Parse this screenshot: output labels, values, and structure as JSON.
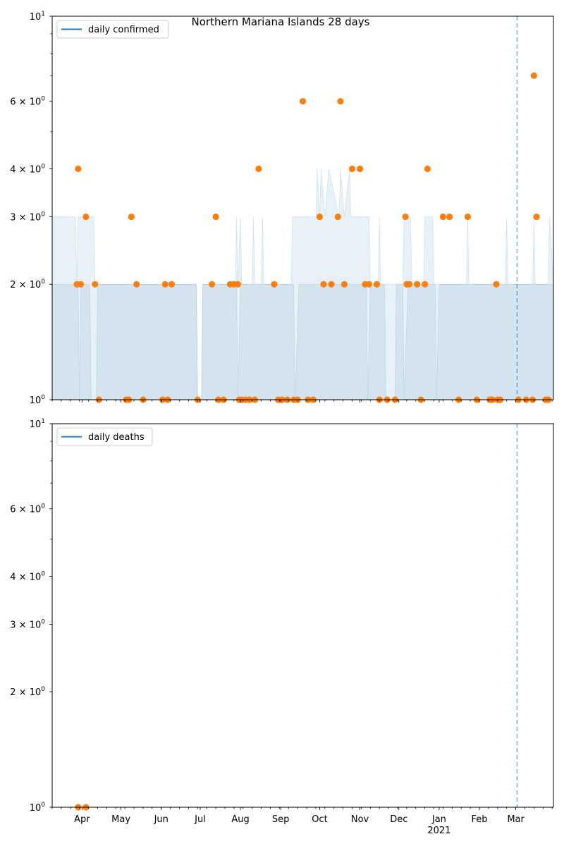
{
  "figure_title": "Northern Mariana Islands 28 days",
  "colors": {
    "line": "#1f77b4",
    "points": "#ff7f0e",
    "band": "#1f77b4",
    "vline": "#1f77b4"
  },
  "chart_data": [
    {
      "type": "scatter",
      "panel": "top",
      "title": "Northern Mariana Islands 28 days",
      "legend": {
        "label": "daily confirmed",
        "placement": "top-left"
      },
      "y_scale": "log",
      "ylim": [
        1,
        10
      ],
      "y_ticks": [
        {
          "value": 1,
          "label": "10",
          "exp": "0"
        },
        {
          "value": 2,
          "label": "2 × 10",
          "exp": "0"
        },
        {
          "value": 3,
          "label": "3 × 10",
          "exp": "0"
        },
        {
          "value": 4,
          "label": "4 × 10",
          "exp": "0"
        },
        {
          "value": 6,
          "label": "6 × 10",
          "exp": "0"
        },
        {
          "value": 10,
          "label": "10",
          "exp": "1"
        }
      ],
      "xlim": [
        "2020-03-09",
        "2021-03-30"
      ],
      "vline_date": "2021-03-02",
      "series": [
        {
          "name": "daily confirmed",
          "points": [
            [
              "2020-03-28",
              2
            ],
            [
              "2020-03-29",
              4
            ],
            [
              "2020-03-31",
              2
            ],
            [
              "2020-04-04",
              3
            ],
            [
              "2020-04-11",
              2
            ],
            [
              "2020-04-14",
              1
            ],
            [
              "2020-05-05",
              1
            ],
            [
              "2020-05-07",
              1
            ],
            [
              "2020-05-09",
              3
            ],
            [
              "2020-05-13",
              2
            ],
            [
              "2020-05-18",
              1
            ],
            [
              "2020-06-02",
              1
            ],
            [
              "2020-06-04",
              2
            ],
            [
              "2020-06-06",
              1
            ],
            [
              "2020-06-09",
              2
            ],
            [
              "2020-06-29",
              1
            ],
            [
              "2020-07-10",
              2
            ],
            [
              "2020-07-13",
              3
            ],
            [
              "2020-07-15",
              1
            ],
            [
              "2020-07-19",
              1
            ],
            [
              "2020-07-24",
              2
            ],
            [
              "2020-07-27",
              2
            ],
            [
              "2020-07-30",
              2
            ],
            [
              "2020-07-31",
              1
            ],
            [
              "2020-08-02",
              1
            ],
            [
              "2020-08-05",
              1
            ],
            [
              "2020-08-08",
              1
            ],
            [
              "2020-08-12",
              1
            ],
            [
              "2020-08-15",
              4
            ],
            [
              "2020-08-27",
              2
            ],
            [
              "2020-08-30",
              1
            ],
            [
              "2020-09-02",
              1
            ],
            [
              "2020-09-06",
              1
            ],
            [
              "2020-09-11",
              1
            ],
            [
              "2020-09-14",
              1
            ],
            [
              "2020-09-18",
              6
            ],
            [
              "2020-09-22",
              1
            ],
            [
              "2020-09-26",
              1
            ],
            [
              "2020-10-01",
              3
            ],
            [
              "2020-10-04",
              2
            ],
            [
              "2020-10-10",
              2
            ],
            [
              "2020-10-15",
              3
            ],
            [
              "2020-10-17",
              6
            ],
            [
              "2020-10-20",
              2
            ],
            [
              "2020-10-26",
              4
            ],
            [
              "2020-11-01",
              4
            ],
            [
              "2020-11-05",
              2
            ],
            [
              "2020-11-08",
              2
            ],
            [
              "2020-11-14",
              2
            ],
            [
              "2020-11-16",
              1
            ],
            [
              "2020-11-22",
              1
            ],
            [
              "2020-11-28",
              1
            ],
            [
              "2020-12-06",
              3
            ],
            [
              "2020-12-07",
              2
            ],
            [
              "2020-12-09",
              2
            ],
            [
              "2020-12-15",
              2
            ],
            [
              "2020-12-18",
              1
            ],
            [
              "2020-12-21",
              2
            ],
            [
              "2020-12-23",
              4
            ],
            [
              "2021-01-04",
              3
            ],
            [
              "2021-01-09",
              3
            ],
            [
              "2021-01-16",
              1
            ],
            [
              "2021-01-23",
              3
            ],
            [
              "2021-01-30",
              1
            ],
            [
              "2021-02-09",
              1
            ],
            [
              "2021-02-11",
              1
            ],
            [
              "2021-02-14",
              2
            ],
            [
              "2021-02-15",
              1
            ],
            [
              "2021-02-17",
              1
            ],
            [
              "2021-03-03",
              1
            ],
            [
              "2021-03-09",
              1
            ],
            [
              "2021-03-14",
              1
            ],
            [
              "2021-03-15",
              7
            ],
            [
              "2021-03-17",
              3
            ],
            [
              "2021-03-24",
              1
            ],
            [
              "2021-03-26",
              1
            ]
          ]
        }
      ],
      "bands": {
        "inner": [
          [
            "2020-03-09",
            2
          ],
          [
            "2020-03-29",
            2
          ],
          [
            "2020-03-30",
            1
          ],
          [
            "2020-03-31",
            2
          ],
          [
            "2020-04-07",
            2
          ],
          [
            "2020-04-08",
            1
          ],
          [
            "2020-04-12",
            1
          ],
          [
            "2020-04-13",
            2
          ],
          [
            "2020-06-28",
            2
          ],
          [
            "2020-06-29",
            1
          ],
          [
            "2020-07-02",
            1
          ],
          [
            "2020-07-03",
            2
          ],
          [
            "2020-07-29",
            2
          ],
          [
            "2020-07-30",
            1
          ],
          [
            "2020-08-01",
            2
          ],
          [
            "2020-09-11",
            2
          ],
          [
            "2020-09-12",
            1
          ],
          [
            "2020-09-15",
            2
          ],
          [
            "2020-11-06",
            2
          ],
          [
            "2020-11-07",
            1
          ],
          [
            "2020-11-09",
            2
          ],
          [
            "2020-11-20",
            2
          ],
          [
            "2020-11-21",
            1
          ],
          [
            "2020-11-28",
            1
          ],
          [
            "2020-11-29",
            2
          ],
          [
            "2020-12-04",
            2
          ],
          [
            "2020-12-05",
            1
          ],
          [
            "2020-12-08",
            2
          ],
          [
            "2020-12-29",
            2
          ],
          [
            "2020-12-30",
            1
          ],
          [
            "2021-01-01",
            2
          ],
          [
            "2021-03-30",
            2
          ]
        ],
        "outer": [
          [
            "2020-03-09",
            3
          ],
          [
            "2020-03-27",
            3
          ],
          [
            "2020-03-28",
            2
          ],
          [
            "2020-03-29",
            3
          ],
          [
            "2020-04-10",
            3
          ],
          [
            "2020-04-11",
            2
          ],
          [
            "2020-06-28",
            2
          ],
          [
            "2020-06-29",
            1
          ],
          [
            "2020-07-02",
            1
          ],
          [
            "2020-07-03",
            2
          ],
          [
            "2020-07-28",
            2
          ],
          [
            "2020-07-29",
            3
          ],
          [
            "2020-07-30",
            2
          ],
          [
            "2020-08-01",
            3
          ],
          [
            "2020-08-02",
            2
          ],
          [
            "2020-08-10",
            2
          ],
          [
            "2020-08-11",
            3
          ],
          [
            "2020-08-12",
            2
          ],
          [
            "2020-08-17",
            2
          ],
          [
            "2020-08-18",
            3
          ],
          [
            "2020-08-19",
            2
          ],
          [
            "2020-09-09",
            2
          ],
          [
            "2020-09-10",
            3
          ],
          [
            "2020-09-28",
            3
          ],
          [
            "2020-09-29",
            4
          ],
          [
            "2020-10-01",
            3
          ],
          [
            "2020-10-02",
            4
          ],
          [
            "2020-10-05",
            3
          ],
          [
            "2020-10-08",
            4
          ],
          [
            "2020-10-16",
            3
          ],
          [
            "2020-10-17",
            4
          ],
          [
            "2020-10-20",
            3
          ],
          [
            "2020-10-24",
            4
          ],
          [
            "2020-10-25",
            3
          ],
          [
            "2020-11-08",
            3
          ],
          [
            "2020-11-09",
            2
          ],
          [
            "2020-11-15",
            2
          ],
          [
            "2020-11-16",
            3
          ],
          [
            "2020-11-17",
            2
          ],
          [
            "2020-12-04",
            2
          ],
          [
            "2020-12-05",
            3
          ],
          [
            "2020-12-10",
            3
          ],
          [
            "2020-12-11",
            2
          ],
          [
            "2020-12-20",
            2
          ],
          [
            "2020-12-21",
            3
          ],
          [
            "2020-12-27",
            3
          ],
          [
            "2020-12-28",
            2
          ],
          [
            "2021-01-22",
            2
          ],
          [
            "2021-01-23",
            3
          ],
          [
            "2021-01-24",
            2
          ],
          [
            "2021-02-21",
            2
          ],
          [
            "2021-02-22",
            3
          ],
          [
            "2021-02-23",
            2
          ],
          [
            "2021-03-14",
            2
          ],
          [
            "2021-03-15",
            3
          ],
          [
            "2021-03-16",
            2
          ],
          [
            "2021-03-26",
            2
          ],
          [
            "2021-03-27",
            3
          ],
          [
            "2021-03-30",
            2
          ]
        ]
      }
    },
    {
      "type": "scatter",
      "panel": "bottom",
      "legend": {
        "label": "daily deaths",
        "placement": "top-left"
      },
      "y_scale": "log",
      "ylim": [
        1,
        10
      ],
      "y_ticks": [
        {
          "value": 1,
          "label": "10",
          "exp": "0"
        },
        {
          "value": 2,
          "label": "2 × 10",
          "exp": "0"
        },
        {
          "value": 3,
          "label": "3 × 10",
          "exp": "0"
        },
        {
          "value": 4,
          "label": "4 × 10",
          "exp": "0"
        },
        {
          "value": 6,
          "label": "6 × 10",
          "exp": "0"
        },
        {
          "value": 10,
          "label": "10",
          "exp": "1"
        }
      ],
      "xlim": [
        "2020-03-09",
        "2021-03-30"
      ],
      "x_ticks": [
        {
          "date": "2020-04-01",
          "label": "Apr"
        },
        {
          "date": "2020-05-01",
          "label": "May"
        },
        {
          "date": "2020-06-01",
          "label": "Jun"
        },
        {
          "date": "2020-07-01",
          "label": "Jul"
        },
        {
          "date": "2020-08-01",
          "label": "Aug"
        },
        {
          "date": "2020-09-01",
          "label": "Sep"
        },
        {
          "date": "2020-10-01",
          "label": "Oct"
        },
        {
          "date": "2020-11-01",
          "label": "Nov"
        },
        {
          "date": "2020-12-01",
          "label": "Dec"
        },
        {
          "date": "2021-01-01",
          "label": "Jan",
          "sub": "2021"
        },
        {
          "date": "2021-02-01",
          "label": "Feb"
        },
        {
          "date": "2021-03-01",
          "label": "Mar"
        }
      ],
      "vline_date": "2021-03-02",
      "series": [
        {
          "name": "daily deaths",
          "points": [
            [
              "2020-03-29",
              1
            ],
            [
              "2020-04-04",
              1
            ]
          ]
        }
      ]
    }
  ]
}
